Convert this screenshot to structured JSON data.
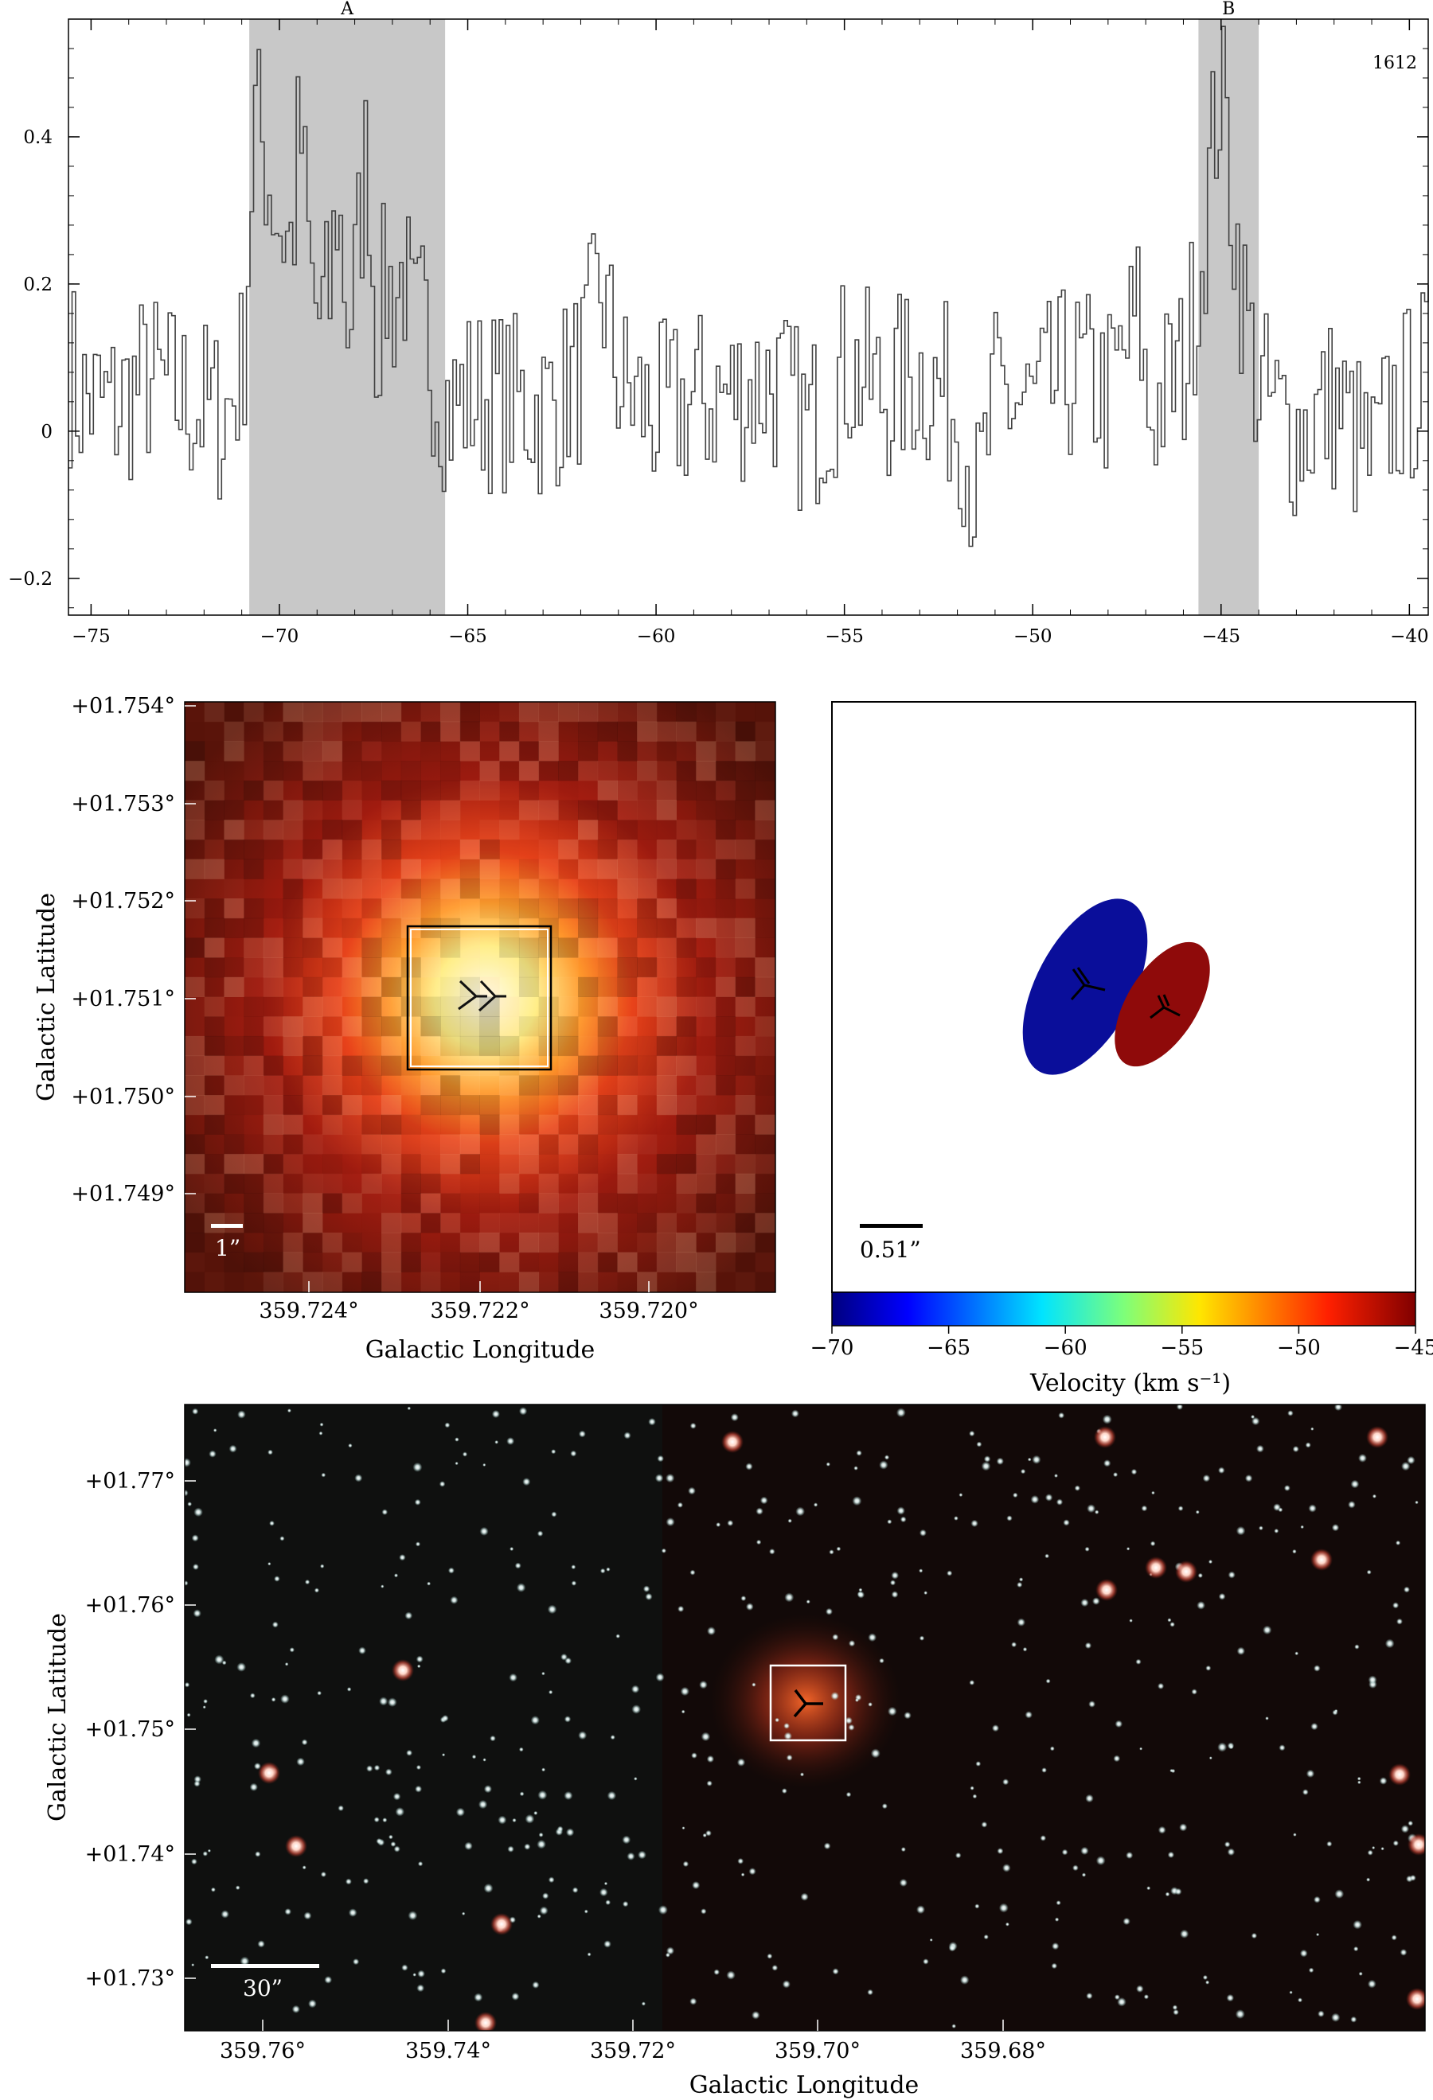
{
  "chart_data": [
    {
      "type": "line",
      "panel": "spectrum",
      "title": "",
      "xlabel": "",
      "ylabel": "",
      "corner_label": "1612",
      "xlim": [
        -75.6,
        -39.5
      ],
      "ylim": [
        -0.25,
        0.56
      ],
      "x_ticks": [
        -75,
        -70,
        -65,
        -60,
        -55,
        -50,
        -45,
        -40
      ],
      "x_tick_labels": [
        "−75",
        "−70",
        "−65",
        "−60",
        "−55",
        "−50",
        "−45",
        "−40"
      ],
      "y_ticks": [
        -0.2,
        0,
        0.2,
        0.4
      ],
      "y_tick_labels": [
        "−0.2",
        "0",
        "0.2",
        "0.4"
      ],
      "shaded_regions": [
        {
          "label": "A",
          "x_range": [
            -70.8,
            -65.6
          ],
          "color": "#c8c8c8"
        },
        {
          "label": "B",
          "x_range": [
            -45.6,
            -44.0
          ],
          "color": "#c8c8c8"
        }
      ],
      "series": [
        {
          "style": "step",
          "color": "#404040",
          "x": [
            -75.5,
            -74.5,
            -73.5,
            -72.5,
            -71.5,
            -71.0,
            -70.7,
            -70.5,
            -70.2,
            -70.0,
            -69.7,
            -69.5,
            -69.2,
            -69.0,
            -68.7,
            -68.5,
            -68.2,
            -68.0,
            -67.7,
            -67.5,
            -67.2,
            -67.0,
            -66.7,
            -66.5,
            -66.2,
            -66.0,
            -65.7,
            -65.5,
            -65.0,
            -64.0,
            -63.0,
            -62.0,
            -61.5,
            -61.0,
            -60.0,
            -59.0,
            -58.0,
            -57.0,
            -56.0,
            -55.0,
            -54.0,
            -53.0,
            -52.0,
            -51.5,
            -51.0,
            -50.0,
            -49.0,
            -48.0,
            -47.2,
            -47.0,
            -46.0,
            -45.5,
            -45.2,
            -45.0,
            -44.8,
            -44.5,
            -44.2,
            -44.0,
            -43.5,
            -43.0,
            -42.0,
            -41.0,
            -40.5,
            -40.0,
            -39.6
          ],
          "y": [
            0.05,
            0.03,
            0.07,
            0.04,
            0.02,
            0.09,
            0.43,
            0.39,
            0.32,
            0.28,
            0.25,
            0.42,
            0.2,
            0.15,
            0.18,
            0.32,
            0.14,
            0.22,
            0.4,
            0.13,
            0.2,
            0.18,
            0.22,
            0.12,
            0.15,
            0.1,
            0.05,
            0.03,
            0.05,
            0.04,
            0.03,
            0.08,
            0.2,
            0.06,
            0.02,
            0.04,
            0.05,
            0.07,
            0.0,
            0.09,
            0.05,
            0.08,
            0.03,
            -0.1,
            0.05,
            0.03,
            0.08,
            0.05,
            0.16,
            0.02,
            0.09,
            0.26,
            0.42,
            0.48,
            0.34,
            0.2,
            0.1,
            0.05,
            0.02,
            0.0,
            0.04,
            -0.05,
            0.03,
            0.05,
            0.08
          ]
        }
      ]
    },
    {
      "type": "other",
      "panel": "zoom-image",
      "xlabel": "Galactic Longitude",
      "ylabel": "Galactic Latitude",
      "x_tick_labels": [
        "359.724°",
        "359.722°",
        "359.720°"
      ],
      "y_tick_labels": [
        "+01.754°",
        "+01.753°",
        "+01.752°",
        "+01.751°",
        "+01.750°",
        "+01.749°"
      ],
      "scale_bar_label": "1”"
    },
    {
      "type": "other",
      "panel": "velocity-map",
      "colorbar_label": "Velocity (km s⁻¹)",
      "colorbar_range": [
        -70,
        -45
      ],
      "colorbar_tick_labels": [
        "−70",
        "−65",
        "−60",
        "−55",
        "−50",
        "−45"
      ],
      "scale_bar_label": "0.51”",
      "components": [
        {
          "name": "A",
          "velocity": -68,
          "color": "#0a0e9a"
        },
        {
          "name": "B",
          "velocity": -45,
          "color": "#8f0a0a"
        }
      ]
    },
    {
      "type": "other",
      "panel": "wide-field-image",
      "xlabel": "Galactic Longitude",
      "ylabel": "Galactic Latitude",
      "x_tick_labels": [
        "359.76°",
        "359.74°",
        "359.72°",
        "359.70°",
        "359.68°"
      ],
      "y_tick_labels": [
        "+01.77°",
        "+01.76°",
        "+01.75°",
        "+01.74°",
        "+01.73°"
      ],
      "scale_bar_label": "30”"
    }
  ]
}
